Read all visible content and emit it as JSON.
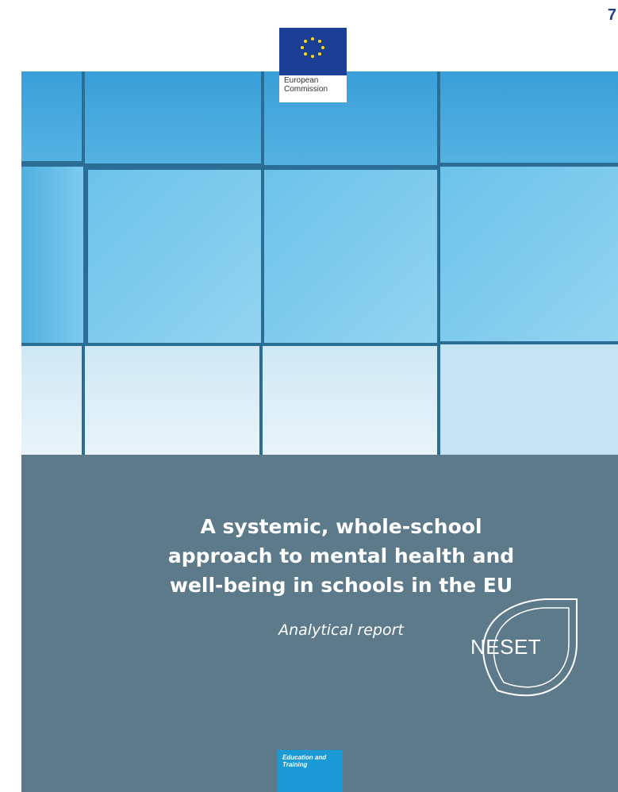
{
  "page_number": "7",
  "logo": {
    "line1": "European",
    "line2": "Commission"
  },
  "title": {
    "lines": [
      "A systemic, whole-school",
      "approach to mental health and",
      "well-being in schools in the EU"
    ]
  },
  "subtitle": "Analytical report",
  "badge": "NESET",
  "category": {
    "line1": "Education and",
    "line2": "Training"
  }
}
